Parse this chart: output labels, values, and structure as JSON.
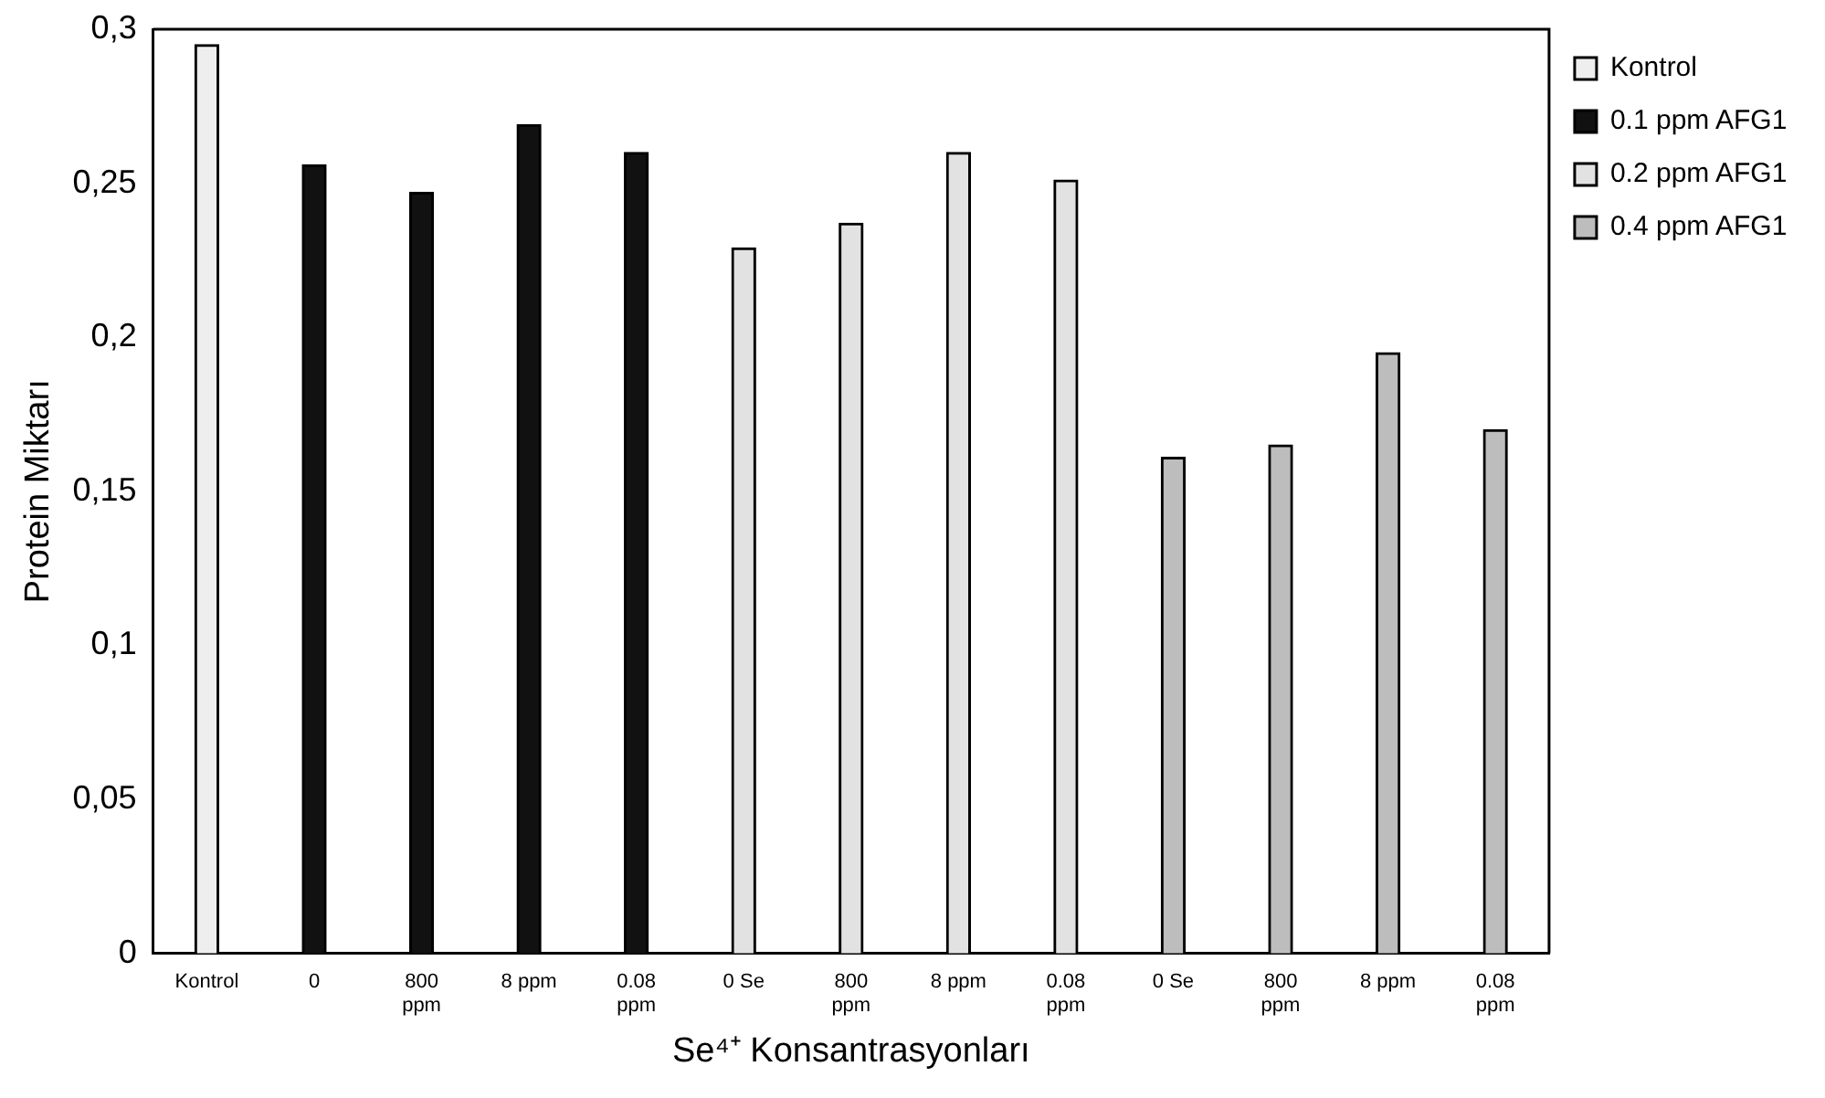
{
  "chart_data": {
    "type": "bar",
    "xlabel": "Se⁴⁺ Konsantrasyonları",
    "ylabel": "Protein Miktarı",
    "categories": [
      "Kontrol",
      "0",
      "800 ppm",
      "8 ppm",
      "0.08 ppm",
      "0 Se",
      "800 ppm",
      "8 ppm",
      "0.08 ppm",
      "0 Se",
      "800 ppm",
      "8 ppm",
      "0.08 ppm"
    ],
    "series": [
      {
        "name": "Kontrol",
        "color": "#eeeeee",
        "values": [
          0.295,
          null,
          null,
          null,
          null,
          null,
          null,
          null,
          null,
          null,
          null,
          null,
          null
        ]
      },
      {
        "name": "0.1 ppm AFG1",
        "color": "#111111",
        "values": [
          null,
          0.256,
          0.247,
          0.269,
          0.26,
          null,
          null,
          null,
          null,
          null,
          null,
          null,
          null
        ]
      },
      {
        "name": "0.2 ppm AFG1",
        "color": "#e2e2e2",
        "values": [
          null,
          null,
          null,
          null,
          null,
          0.229,
          0.237,
          0.26,
          0.251,
          null,
          null,
          null,
          null
        ]
      },
      {
        "name": "0.4 ppm AFG1",
        "color": "#bdbdbd",
        "values": [
          null,
          null,
          null,
          null,
          null,
          null,
          null,
          null,
          null,
          0.161,
          0.165,
          0.195,
          0.17
        ]
      }
    ],
    "ylim": [
      0,
      0.3
    ],
    "yticks": [
      0,
      {
        "value": 0.05,
        "label": "0,05"
      },
      {
        "value": 0.1,
        "label": "0,1"
      },
      {
        "value": 0.15,
        "label": "0,15"
      },
      {
        "value": 0.2,
        "label": "0,2"
      },
      {
        "value": 0.25,
        "label": "0,25"
      },
      {
        "value": 0.3,
        "label": "0,3"
      }
    ],
    "grid": false,
    "legend": "top right"
  }
}
